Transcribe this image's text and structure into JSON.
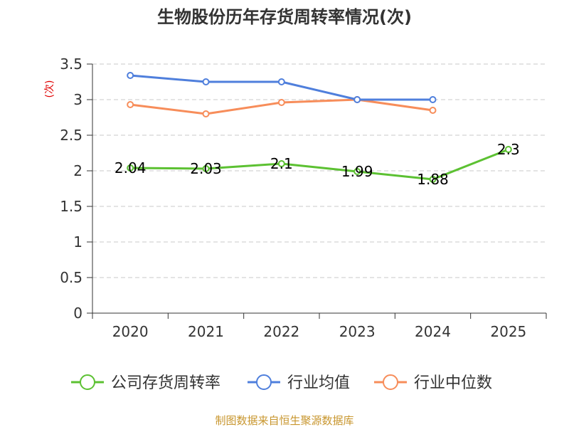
{
  "chart_data": {
    "type": "line",
    "title": "生物股份历年存货周转率情况(次)",
    "ylabel": "(次)",
    "xlabel": "",
    "categories": [
      "2020",
      "2021",
      "2022",
      "2023",
      "2024",
      "2025"
    ],
    "ylim": [
      0,
      3.5
    ],
    "yticks": [
      "0",
      "0.5",
      "1",
      "1.5",
      "2",
      "2.5",
      "3",
      "3.5"
    ],
    "grid": true,
    "legend_position": "bottom",
    "series": [
      {
        "name": "公司存货周转率",
        "color": "#5cc132",
        "values": [
          2.04,
          2.03,
          2.1,
          1.99,
          1.88,
          2.3
        ],
        "labels": [
          "2.04",
          "2.03",
          "2.1",
          "1.99",
          "1.88",
          "2.3"
        ]
      },
      {
        "name": "行业均值",
        "color": "#4f7fdc",
        "values": [
          3.34,
          3.25,
          3.25,
          3.0,
          3.0,
          null
        ]
      },
      {
        "name": "行业中位数",
        "color": "#f78d5a",
        "values": [
          2.93,
          2.8,
          2.96,
          3.0,
          2.85,
          null
        ]
      }
    ],
    "source": "制图数据来自恒生聚源数据库"
  }
}
